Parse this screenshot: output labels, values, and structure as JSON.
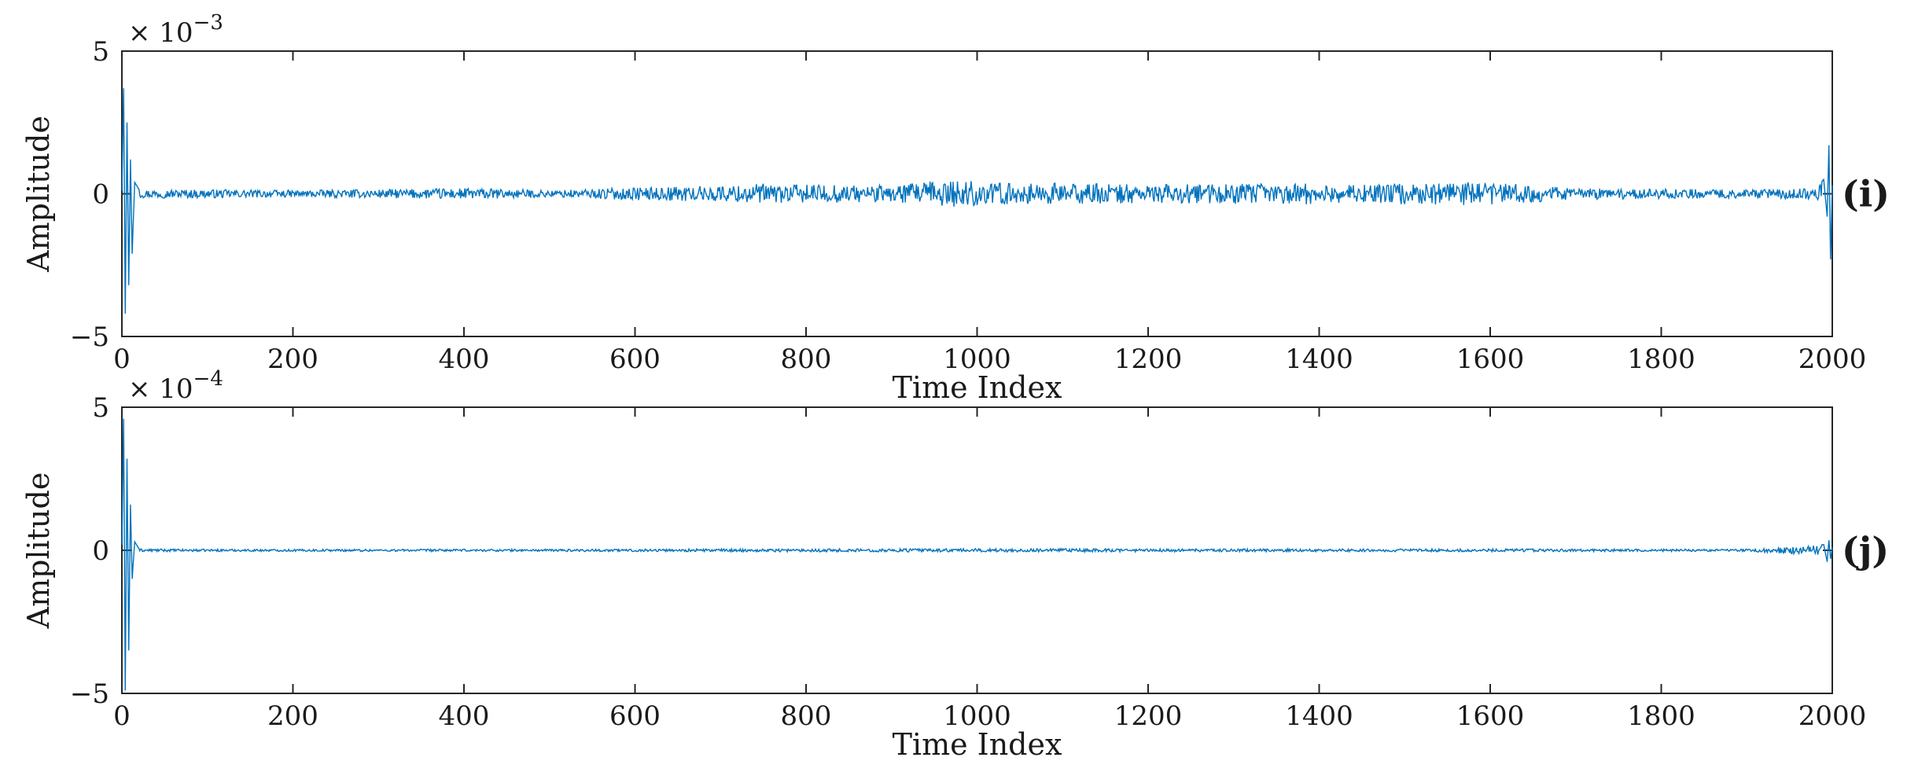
{
  "chart_data": [
    {
      "type": "line",
      "panel_label": "(i)",
      "xlabel": "Time Index",
      "ylabel": "Amplitude",
      "exponent": {
        "base": "× 10",
        "power": "-3"
      },
      "xlim": [
        0,
        2000
      ],
      "ylim": [
        -5,
        5
      ],
      "xticks": [
        "0",
        "200",
        "400",
        "600",
        "800",
        "1000",
        "1200",
        "1400",
        "1600",
        "1800",
        "2000"
      ],
      "yticks": [
        "-5",
        "0",
        "5"
      ],
      "line_color": "#0072BD",
      "series": [
        {
          "x": [
            0,
            2,
            4,
            6,
            8,
            10,
            12,
            15,
            20,
            50,
            100,
            200,
            300,
            400,
            500,
            600,
            700,
            750,
            800,
            900,
            950,
            980,
            1000,
            1050,
            1100,
            1200,
            1300,
            1350,
            1400,
            1450,
            1500,
            1550,
            1600,
            1620,
            1700,
            1800,
            1900,
            1980,
            1990,
            1994,
            1996,
            1998,
            2000
          ],
          "y": [
            0.1,
            3.7,
            -4.2,
            2.5,
            -3.2,
            1.2,
            -2.1,
            0.4,
            0.15,
            0.15,
            0.15,
            0.12,
            0.15,
            0.2,
            0.12,
            0.22,
            0.28,
            0.35,
            0.32,
            0.3,
            0.45,
            0.5,
            0.42,
            0.35,
            0.38,
            0.32,
            0.35,
            0.4,
            0.36,
            0.32,
            0.38,
            0.4,
            0.42,
            0.36,
            0.2,
            0.18,
            0.15,
            0.2,
            0.5,
            -0.8,
            1.7,
            -2.3,
            0.3
          ]
        }
      ]
    },
    {
      "type": "line",
      "panel_label": "(j)",
      "xlabel": "Time Index",
      "ylabel": "Amplitude",
      "exponent": {
        "base": "× 10",
        "power": "-4"
      },
      "xlim": [
        0,
        2000
      ],
      "ylim": [
        -5,
        5
      ],
      "xticks": [
        "0",
        "200",
        "400",
        "600",
        "800",
        "1000",
        "1200",
        "1400",
        "1600",
        "1800",
        "2000"
      ],
      "yticks": [
        "-5",
        "0",
        "5"
      ],
      "line_color": "#0072BD",
      "series": [
        {
          "x": [
            0,
            2,
            4,
            6,
            8,
            10,
            12,
            15,
            20,
            100,
            500,
            700,
            1000,
            1300,
            1600,
            1900,
            1990,
            1994,
            1996,
            1998,
            2000
          ],
          "y": [
            0.2,
            4.6,
            -4.9,
            3.2,
            -3.5,
            1.6,
            -1.0,
            0.3,
            0.05,
            0.04,
            0.04,
            0.05,
            0.06,
            0.05,
            0.05,
            0.04,
            0.2,
            -0.4,
            0.35,
            -0.3,
            0.1
          ]
        }
      ]
    }
  ]
}
